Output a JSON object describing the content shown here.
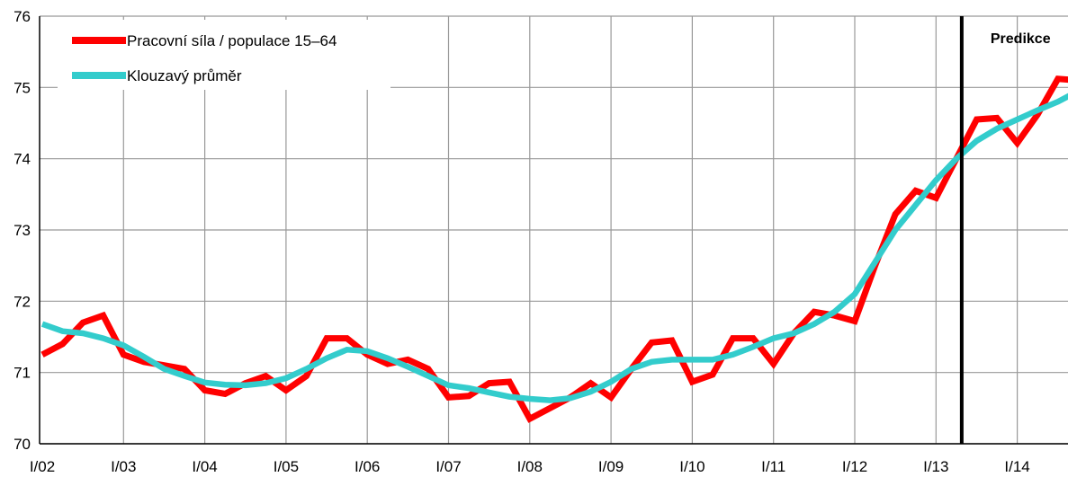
{
  "chart_data": {
    "type": "line",
    "title": "",
    "xlabel": "",
    "ylabel": "",
    "ylim": [
      70,
      76
    ],
    "y_ticks": [
      "70",
      "71",
      "72",
      "73",
      "74",
      "75",
      "76"
    ],
    "x_tick_labels": [
      "I/02",
      "I/03",
      "I/04",
      "I/05",
      "I/06",
      "I/07",
      "I/08",
      "I/09",
      "I/10",
      "I/11",
      "I/12",
      "I/13",
      "I/14"
    ],
    "grid": true,
    "legend_position": "top-left",
    "series": [
      {
        "name": "Pracovní síla / populace 15–64",
        "color": "#ff0000",
        "values": [
          71.25,
          71.4,
          71.7,
          71.8,
          71.25,
          71.15,
          71.1,
          71.05,
          70.75,
          70.7,
          70.85,
          70.95,
          70.75,
          70.95,
          71.48,
          71.48,
          71.25,
          71.12,
          71.18,
          71.05,
          70.65,
          70.67,
          70.85,
          70.87,
          70.35,
          70.5,
          70.65,
          70.85,
          70.65,
          71.05,
          71.42,
          71.45,
          70.87,
          70.97,
          71.48,
          71.48,
          71.12,
          71.55,
          71.85,
          71.8,
          71.72,
          72.5,
          73.22,
          73.55,
          73.45,
          74.0,
          74.55,
          74.57,
          74.22,
          74.62,
          75.12,
          75.1
        ]
      },
      {
        "name": "Klouzavý průměr",
        "color": "#33cccc",
        "values": [
          71.68,
          71.58,
          71.55,
          71.48,
          71.38,
          71.22,
          71.05,
          70.95,
          70.86,
          70.83,
          70.82,
          70.85,
          70.92,
          71.05,
          71.2,
          71.32,
          71.3,
          71.2,
          71.08,
          70.95,
          70.82,
          70.78,
          70.72,
          70.66,
          70.63,
          70.61,
          70.64,
          70.73,
          70.87,
          71.05,
          71.15,
          71.18,
          71.18,
          71.18,
          71.25,
          71.36,
          71.48,
          71.55,
          71.68,
          71.85,
          72.1,
          72.55,
          73.0,
          73.35,
          73.7,
          74.0,
          74.25,
          74.42,
          74.55,
          74.68,
          74.8,
          74.95
        ]
      }
    ],
    "annotations": [
      {
        "text": "Predikce",
        "x_index": 45
      }
    ]
  }
}
